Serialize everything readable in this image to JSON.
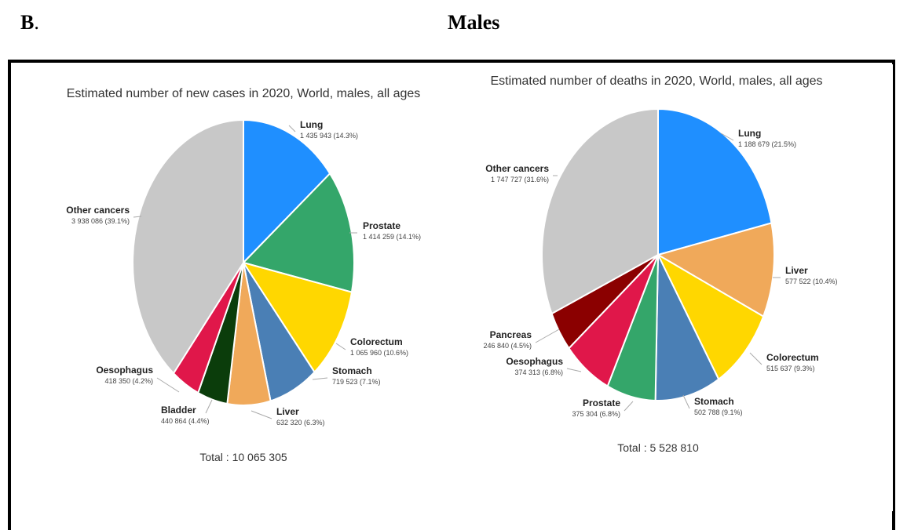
{
  "panel_letter": "B",
  "panel_suffix": ".",
  "heading": "Males",
  "chart_data": [
    {
      "type": "pie",
      "title": "Estimated number of new cases in 2020, World, males, all ages",
      "total_label": "Total : 10 065 305",
      "slices": [
        {
          "name": "Lung",
          "value": 1435943,
          "label": "1 435 943 (14.3%)",
          "color": "#1f8fff"
        },
        {
          "name": "Prostate",
          "value": 1414259,
          "label": "1 414 259 (14.1%)",
          "color": "#34a66a"
        },
        {
          "name": "Colorectum",
          "value": 1065960,
          "label": "1 065 960 (10.6%)",
          "color": "#ffd700"
        },
        {
          "name": "Stomach",
          "value": 719523,
          "label": "719 523 (7.1%)",
          "color": "#4a7fb5"
        },
        {
          "name": "Liver",
          "value": 632320,
          "label": "632 320 (6.3%)",
          "color": "#f0a95a"
        },
        {
          "name": "Bladder",
          "value": 440864,
          "label": "440 864 (4.4%)",
          "color": "#0b3d0b"
        },
        {
          "name": "Oesophagus",
          "value": 418350,
          "label": "418 350 (4.2%)",
          "color": "#e0174a"
        },
        {
          "name": "Other cancers",
          "value": 3938086,
          "label": "3 938 086 (39.1%)",
          "color": "#c8c8c8"
        }
      ]
    },
    {
      "type": "pie",
      "title": "Estimated number of deaths in 2020, World, males, all ages",
      "total_label": "Total : 5 528 810",
      "slices": [
        {
          "name": "Lung",
          "value": 1188679,
          "label": "1 188 679 (21.5%)",
          "color": "#1f8fff"
        },
        {
          "name": "Liver",
          "value": 577522,
          "label": "577 522 (10.4%)",
          "color": "#f0a95a"
        },
        {
          "name": "Colorectum",
          "value": 515637,
          "label": "515 637 (9.3%)",
          "color": "#ffd700"
        },
        {
          "name": "Stomach",
          "value": 502788,
          "label": "502 788 (9.1%)",
          "color": "#4a7fb5"
        },
        {
          "name": "Prostate",
          "value": 375304,
          "label": "375 304 (6.8%)",
          "color": "#34a66a"
        },
        {
          "name": "Oesophagus",
          "value": 374313,
          "label": "374 313 (6.8%)",
          "color": "#e0174a"
        },
        {
          "name": "Pancreas",
          "value": 246840,
          "label": "246 840 (4.5%)",
          "color": "#8b0000"
        },
        {
          "name": "Other cancers",
          "value": 1747727,
          "label": "1 747 727 (31.6%)",
          "color": "#c8c8c8"
        }
      ]
    }
  ]
}
